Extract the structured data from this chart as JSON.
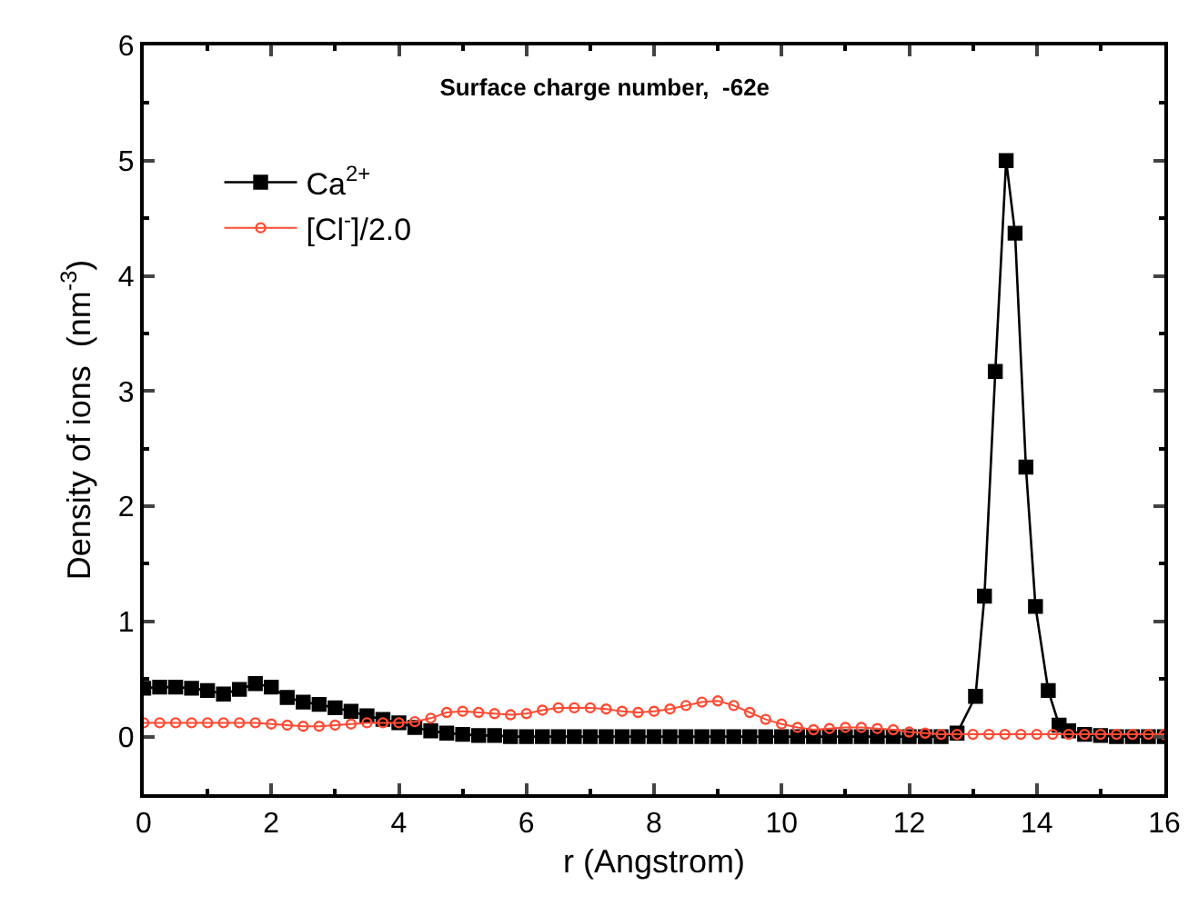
{
  "chart_data": {
    "type": "line",
    "title": "Surface charge number,  -62e",
    "xlabel": "r (Angstrom)",
    "ylabel": "Density of ions  (nm$^{-3}$)",
    "xlim": [
      0,
      16
    ],
    "xticks": [
      0,
      2,
      4,
      6,
      8,
      10,
      12,
      14,
      16
    ],
    "ylim": [
      -0.5,
      6
    ],
    "yticks": [
      0,
      1,
      2,
      3,
      4,
      5,
      6
    ],
    "grid": false,
    "legend": "top left",
    "series": [
      {
        "name": "Ca$^{2+}$",
        "color": "#000000",
        "marker": "square",
        "x": [
          0,
          0.25,
          0.5,
          0.75,
          1,
          1.25,
          1.5,
          1.75,
          2,
          2.25,
          2.5,
          2.75,
          3,
          3.25,
          3.5,
          3.75,
          4,
          4.25,
          4.5,
          4.75,
          5,
          5.25,
          5.5,
          5.75,
          6,
          6.25,
          6.5,
          6.75,
          7,
          7.25,
          7.5,
          7.75,
          8,
          8.25,
          8.5,
          8.75,
          9,
          9.25,
          9.5,
          9.75,
          10,
          10.25,
          10.5,
          10.75,
          11,
          11.25,
          11.5,
          11.75,
          12,
          12.25,
          12.5,
          12.75,
          13.04,
          13.18,
          13.35,
          13.52,
          13.66,
          13.83,
          13.98,
          14.18,
          14.35,
          14.5,
          14.75,
          15,
          15.25,
          15.5,
          15.75,
          16
        ],
        "values": [
          0.42,
          0.43,
          0.43,
          0.42,
          0.4,
          0.37,
          0.41,
          0.46,
          0.43,
          0.34,
          0.3,
          0.28,
          0.25,
          0.22,
          0.18,
          0.15,
          0.12,
          0.08,
          0.05,
          0.03,
          0.02,
          0.01,
          0.01,
          0,
          0,
          0,
          0,
          0,
          0,
          0,
          0,
          0,
          0,
          0,
          0,
          0,
          0,
          0,
          0,
          0,
          0,
          0,
          0,
          0,
          0,
          0,
          0,
          0,
          0,
          0,
          0,
          0.03,
          0.35,
          1.22,
          3.17,
          5.0,
          4.37,
          2.34,
          1.13,
          0.4,
          0.1,
          0.05,
          0.02,
          0.01,
          0,
          0,
          0,
          0
        ]
      },
      {
        "name": "[Cl$^{-}$]/2.0",
        "color": "#ff4b33",
        "marker": "circle",
        "x": [
          0,
          0.25,
          0.5,
          0.75,
          1,
          1.25,
          1.5,
          1.75,
          2,
          2.25,
          2.5,
          2.75,
          3,
          3.25,
          3.5,
          3.75,
          4,
          4.25,
          4.5,
          4.75,
          5,
          5.25,
          5.5,
          5.75,
          6,
          6.25,
          6.5,
          6.75,
          7,
          7.25,
          7.5,
          7.75,
          8,
          8.25,
          8.5,
          8.75,
          9,
          9.25,
          9.5,
          9.75,
          10,
          10.25,
          10.5,
          10.75,
          11,
          11.25,
          11.5,
          11.75,
          12,
          12.25,
          12.5,
          12.75,
          13,
          13.25,
          13.5,
          13.75,
          14,
          14.25,
          14.5,
          14.75,
          15,
          15.25,
          15.5,
          15.75,
          16
        ],
        "values": [
          0.12,
          0.12,
          0.12,
          0.12,
          0.12,
          0.12,
          0.12,
          0.12,
          0.11,
          0.1,
          0.09,
          0.09,
          0.1,
          0.11,
          0.12,
          0.12,
          0.12,
          0.13,
          0.16,
          0.21,
          0.22,
          0.21,
          0.2,
          0.19,
          0.2,
          0.23,
          0.25,
          0.25,
          0.25,
          0.24,
          0.22,
          0.21,
          0.22,
          0.24,
          0.27,
          0.3,
          0.31,
          0.27,
          0.21,
          0.15,
          0.11,
          0.08,
          0.06,
          0.07,
          0.08,
          0.08,
          0.07,
          0.06,
          0.04,
          0.03,
          0.02,
          0.02,
          0.02,
          0.02,
          0.02,
          0.02,
          0.02,
          0.02,
          0.02,
          0.02,
          0.02,
          0.02,
          0.02,
          0.02,
          0.02
        ]
      }
    ]
  }
}
